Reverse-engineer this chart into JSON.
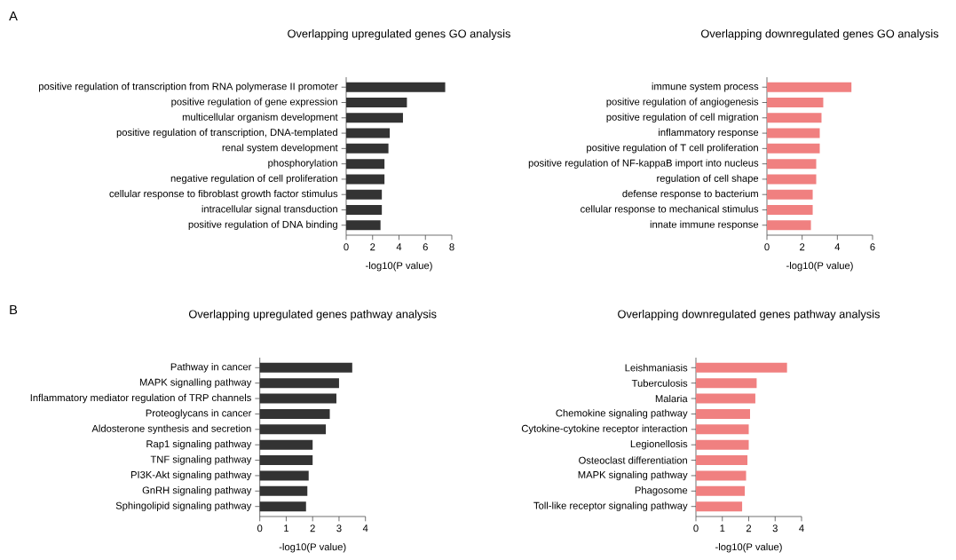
{
  "chart_data": [
    {
      "type": "bar",
      "orientation": "horizontal",
      "title": "Overlapping upregulated genes GO analysis",
      "xlabel": "-log10(P value)",
      "annotations": [
        "A"
      ],
      "color": "#333333",
      "categories": [
        "positive regulation of transcription from RNA polymerase II promoter",
        "positive regulation of gene expression",
        "multicellular organism development",
        "positive regulation of transcription, DNA-templated",
        "renal system development",
        "phosphorylation",
        "negative regulation of cell proliferation",
        "cellular response to fibroblast growth factor stimulus",
        "intracellular signal transduction",
        "positive regulation of DNA binding"
      ],
      "values": [
        7.5,
        4.6,
        4.3,
        3.3,
        3.2,
        2.9,
        2.9,
        2.7,
        2.7,
        2.6
      ],
      "xlim": [
        0,
        8
      ],
      "xticks": [
        0,
        2,
        4,
        6,
        8
      ]
    },
    {
      "type": "bar",
      "orientation": "horizontal",
      "title": "Overlapping downregulated genes GO analysis",
      "xlabel": "-log10(P value)",
      "color": "#f08080",
      "categories": [
        "immune system process",
        "positive regulation of angiogenesis",
        "positive regulation of cell migration",
        "inflammatory response",
        "positive regulation of T cell proliferation",
        "positive regulation of NF-kappaB import into nucleus",
        "regulation of cell shape",
        "defense response to bacterium",
        "cellular response to mechanical stimulus",
        "innate immune response"
      ],
      "values": [
        4.8,
        3.2,
        3.1,
        3.0,
        3.0,
        2.8,
        2.8,
        2.6,
        2.6,
        2.5
      ],
      "xlim": [
        0,
        6
      ],
      "xticks": [
        0,
        2,
        4,
        6
      ]
    },
    {
      "type": "bar",
      "orientation": "horizontal",
      "title": "Overlapping upregulated genes pathway analysis",
      "xlabel": "-log10(P value)",
      "annotations": [
        "B"
      ],
      "color": "#333333",
      "categories": [
        "Pathway in cancer",
        "MAPK signalling pathway",
        "Inflammatory mediator regulation of TRP channels",
        "Proteoglycans in cancer",
        "Aldosterone synthesis and secretion",
        "Rap1 signaling pathway",
        "TNF signaling pathway",
        "PI3K-Akt signaling pathway",
        "GnRH signaling pathway",
        "Sphingolipid signaling pathway"
      ],
      "values": [
        3.5,
        3.0,
        2.9,
        2.65,
        2.5,
        2.0,
        2.0,
        1.85,
        1.8,
        1.75
      ],
      "xlim": [
        0,
        4
      ],
      "xticks": [
        0,
        1,
        2,
        3,
        4
      ]
    },
    {
      "type": "bar",
      "orientation": "horizontal",
      "title": "Overlapping downregulated genes pathway analysis",
      "xlabel": "-log10(P value)",
      "color": "#f08080",
      "categories": [
        "Leishmaniasis",
        "Tuberculosis",
        "Malaria",
        "Chemokine signaling pathway",
        "Cytokine-cytokine receptor interaction",
        "Legionellosis",
        "Osteoclast differentiation",
        "MAPK signaling pathway",
        "Phagosome",
        "Toll-like receptor signaling pathway"
      ],
      "values": [
        3.45,
        2.3,
        2.25,
        2.05,
        2.0,
        2.0,
        1.95,
        1.9,
        1.85,
        1.75
      ],
      "xlim": [
        0,
        4
      ],
      "xticks": [
        0,
        1,
        2,
        3,
        4
      ]
    }
  ]
}
